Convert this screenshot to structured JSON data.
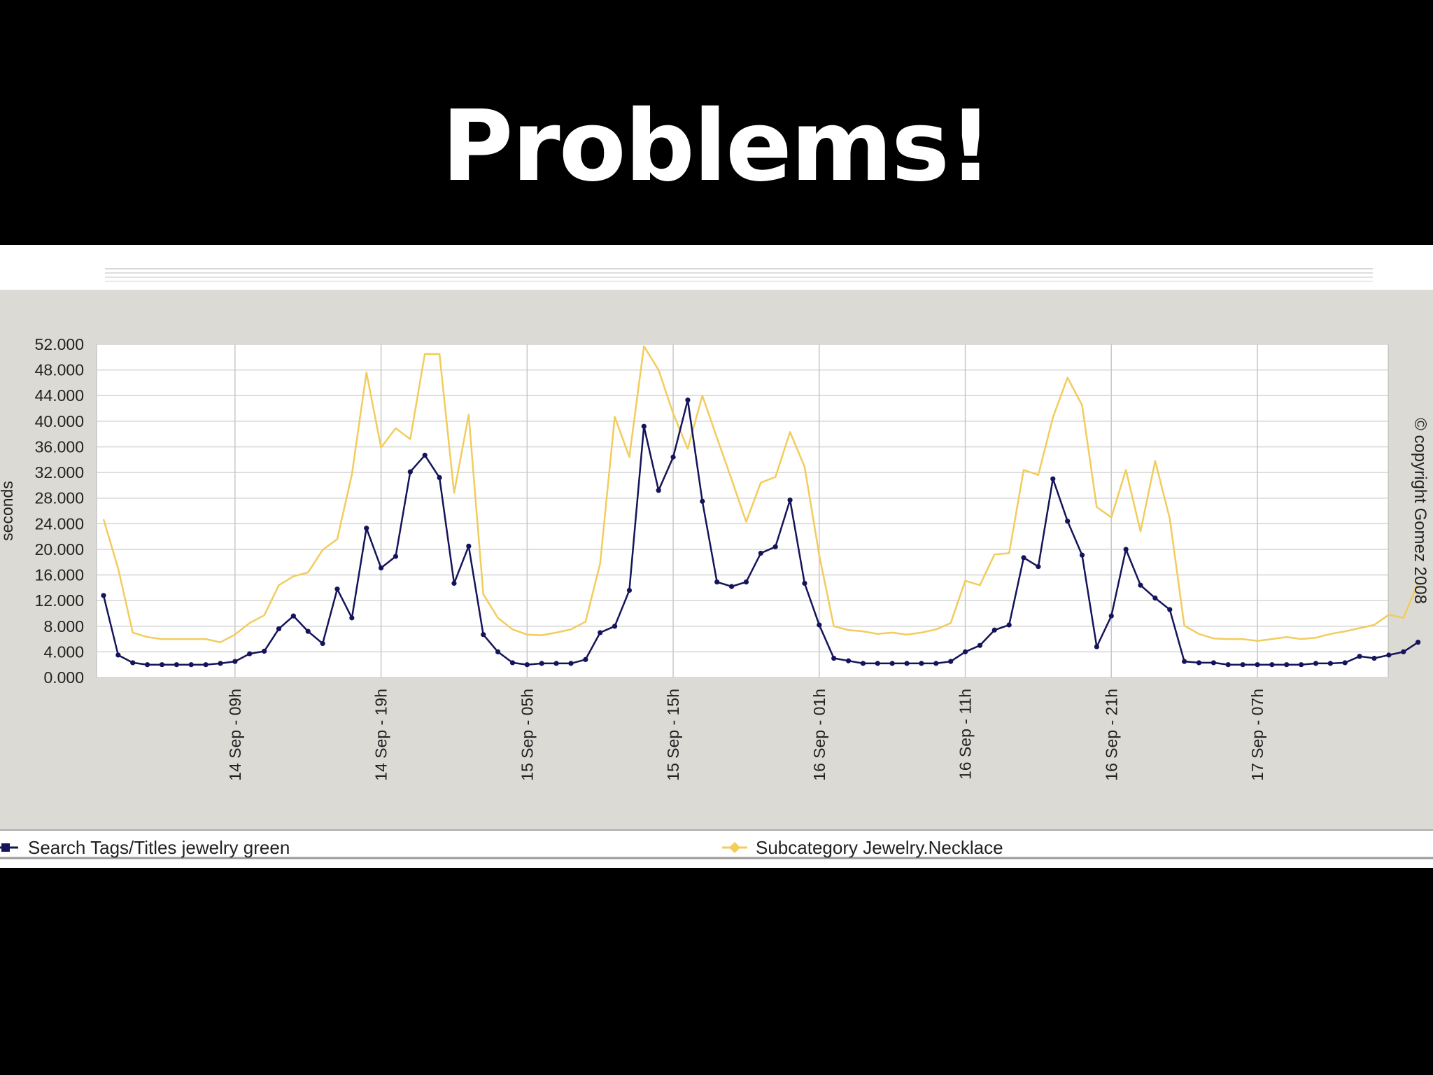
{
  "slide": {
    "title": "Problems!"
  },
  "colors": {
    "background": "#000000",
    "chart_panel": "#ffffff",
    "plot_frame": "#dcdad5",
    "series_search": "#14145a",
    "series_subcategory": "#f2cc5c"
  },
  "chart_data": {
    "type": "line",
    "title": "",
    "xlabel": "",
    "ylabel": "seconds",
    "copyright": "© copyright Gomez 2008",
    "ylim": [
      0,
      52
    ],
    "yticks": [
      "52.000",
      "48.000",
      "44.000",
      "40.000",
      "36.000",
      "32.000",
      "28.000",
      "24.000",
      "20.000",
      "16.000",
      "12.000",
      "8.000",
      "4.000",
      "0.000"
    ],
    "xlim": [
      0,
      87
    ],
    "xticks": [
      {
        "x": 9,
        "label": "14 Sep - 09h"
      },
      {
        "x": 19,
        "label": "14 Sep - 19h"
      },
      {
        "x": 29,
        "label": "15 Sep - 05h"
      },
      {
        "x": 39,
        "label": "15 Sep - 15h"
      },
      {
        "x": 49,
        "label": "16 Sep - 01h"
      },
      {
        "x": 59,
        "label": "16 Sep - 11h"
      },
      {
        "x": 69,
        "label": "16 Sep - 21h"
      },
      {
        "x": 79,
        "label": "17 Sep - 07h"
      }
    ],
    "grid": true,
    "legend_position": "bottom",
    "series": [
      {
        "name": "Search Tags/Titles jewelry green",
        "color": "#14145a",
        "markers": true,
        "values": [
          12.8,
          3.5,
          2.3,
          2.0,
          2.0,
          2.0,
          2.0,
          2.0,
          2.2,
          2.5,
          3.7,
          4.1,
          7.6,
          9.6,
          7.2,
          5.3,
          13.8,
          9.3,
          23.3,
          17.1,
          18.9,
          32.1,
          34.7,
          31.2,
          14.7,
          20.5,
          6.7,
          4.0,
          2.3,
          2.0,
          2.2,
          2.2,
          2.2,
          2.8,
          7.0,
          8.0,
          13.6,
          39.2,
          29.2,
          34.4,
          43.3,
          27.5,
          14.9,
          14.2,
          14.9,
          19.4,
          20.4,
          27.7,
          14.7,
          8.2,
          3.0,
          2.6,
          2.2,
          2.2,
          2.2,
          2.2,
          2.2,
          2.2,
          2.5,
          4.0,
          5.0,
          7.4,
          8.2,
          18.7,
          17.3,
          31.0,
          24.4,
          19.1,
          4.8,
          9.6,
          20.0,
          14.4,
          12.4,
          10.6,
          2.5,
          2.3,
          2.3,
          2.0,
          2.0,
          2.0,
          2.0,
          2.0,
          2.0,
          2.2,
          2.2,
          2.3,
          3.3,
          3.0,
          3.5,
          4.0,
          5.5
        ]
      },
      {
        "name": "Subcategory Jewelry.Necklace",
        "color": "#f2cc5c",
        "markers": false,
        "values": [
          24.7,
          17.0,
          7.0,
          6.3,
          6.0,
          6.0,
          6.0,
          6.0,
          5.5,
          6.7,
          8.5,
          9.7,
          14.4,
          15.8,
          16.4,
          19.9,
          21.6,
          31.7,
          47.6,
          35.9,
          38.9,
          37.2,
          50.5,
          50.5,
          28.8,
          41.0,
          13.0,
          9.3,
          7.5,
          6.7,
          6.6,
          7.0,
          7.5,
          8.7,
          17.8,
          40.7,
          34.4,
          51.7,
          48.0,
          41.2,
          35.7,
          44.0,
          37.4,
          30.9,
          24.3,
          30.4,
          31.3,
          38.3,
          32.9,
          19.1,
          8.0,
          7.4,
          7.2,
          6.8,
          7.0,
          6.7,
          7.0,
          7.5,
          8.5,
          15.1,
          14.4,
          19.2,
          19.4,
          32.4,
          31.6,
          40.6,
          46.8,
          42.5,
          26.6,
          25.0,
          32.4,
          22.8,
          33.8,
          24.8,
          8.1,
          6.8,
          6.1,
          6.0,
          6.0,
          5.7,
          6.0,
          6.3,
          6.0,
          6.2,
          6.8,
          7.2,
          7.7,
          8.2,
          9.8,
          9.3,
          14.7
        ]
      }
    ]
  }
}
